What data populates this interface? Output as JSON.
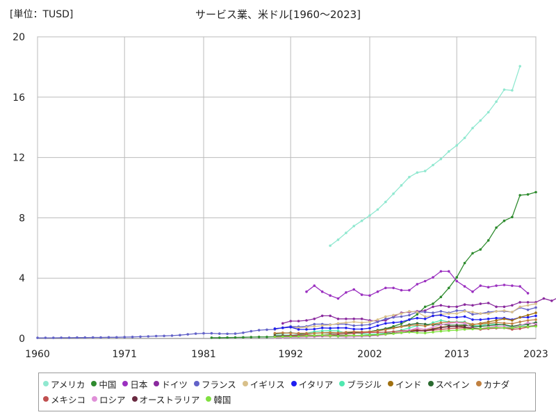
{
  "unit_label": "[単位：TUSD]",
  "chart_data": {
    "type": "line",
    "title": "サービス業、米ドル[1960～2023]",
    "xlabel": "",
    "ylabel": "",
    "xlim": [
      1960,
      2023
    ],
    "ylim": [
      0,
      20
    ],
    "x_ticks": [
      1960,
      1971,
      1981,
      1992,
      2002,
      2013,
      2023
    ],
    "y_ticks": [
      0,
      4,
      8,
      12,
      16,
      20
    ],
    "grid": true,
    "legend_position": "bottom",
    "series": [
      {
        "name": "アメリカ",
        "color": "#90e8d0",
        "start": 1997,
        "values": [
          6.15,
          6.55,
          7.0,
          7.45,
          7.8,
          8.15,
          8.55,
          9.05,
          9.6,
          10.15,
          10.7,
          11.0,
          11.1,
          11.5,
          11.9,
          12.4,
          12.8,
          13.3,
          13.95,
          14.45,
          15.0,
          15.7,
          16.5,
          16.45,
          18.05
        ]
      },
      {
        "name": "中国",
        "color": "#2e8b2e",
        "start": 1982,
        "values": [
          0.05,
          0.05,
          0.06,
          0.07,
          0.08,
          0.09,
          0.1,
          0.1,
          0.11,
          0.12,
          0.14,
          0.16,
          0.18,
          0.2,
          0.22,
          0.25,
          0.28,
          0.31,
          0.34,
          0.38,
          0.45,
          0.55,
          0.65,
          0.8,
          0.98,
          1.25,
          1.6,
          2.1,
          2.3,
          2.75,
          3.35,
          4.05,
          5.0,
          5.65,
          5.9,
          6.5,
          7.35,
          7.8,
          8.05,
          9.5,
          9.55,
          9.7
        ]
      },
      {
        "name": "日本",
        "color": "#9b30c0",
        "start": 1994,
        "values": [
          3.1,
          3.5,
          3.1,
          2.85,
          2.65,
          3.05,
          3.25,
          2.9,
          2.85,
          3.1,
          3.35,
          3.35,
          3.2,
          3.2,
          3.6,
          3.8,
          4.05,
          4.45,
          4.45,
          3.8,
          3.45,
          3.1,
          3.5,
          3.4,
          3.5,
          3.55,
          3.5,
          3.45,
          3.0
        ]
      },
      {
        "name": "ドイツ",
        "color": "#8a2a9e",
        "start": 1991,
        "values": [
          1.0,
          1.15,
          1.15,
          1.2,
          1.3,
          1.5,
          1.5,
          1.3,
          1.3,
          1.3,
          1.3,
          1.2,
          1.15,
          1.2,
          1.45,
          1.7,
          1.75,
          1.8,
          1.85,
          2.1,
          2.2,
          2.1,
          2.1,
          2.25,
          2.2,
          2.3,
          2.35,
          2.1,
          2.1,
          2.2,
          2.4,
          2.4,
          2.4,
          2.65,
          2.5,
          2.75
        ]
      },
      {
        "name": "フランス",
        "color": "#6262c8",
        "start": 1960,
        "values": [
          0.04,
          0.04,
          0.04,
          0.05,
          0.05,
          0.06,
          0.06,
          0.07,
          0.07,
          0.08,
          0.08,
          0.09,
          0.1,
          0.12,
          0.14,
          0.16,
          0.17,
          0.19,
          0.22,
          0.27,
          0.32,
          0.34,
          0.34,
          0.32,
          0.31,
          0.32,
          0.38,
          0.48,
          0.55,
          0.58,
          0.6,
          0.72,
          0.8,
          0.78,
          0.8,
          0.95,
          0.95,
          0.92,
          0.95,
          0.95,
          0.85,
          0.88,
          0.92,
          1.1,
          1.3,
          1.4,
          1.45,
          1.55,
          1.75,
          1.75,
          1.7,
          1.8,
          1.7,
          1.85,
          1.85,
          1.6,
          1.65,
          1.75,
          1.8,
          1.8,
          1.75,
          2.05,
          1.9,
          2.05
        ]
      },
      {
        "name": "イギリス",
        "color": "#d8c08a",
        "start": 1990,
        "values": [
          0.65,
          0.7,
          0.75,
          0.7,
          0.75,
          0.8,
          0.85,
          0.9,
          1.0,
          1.05,
          1.1,
          1.05,
          1.1,
          1.25,
          1.45,
          1.55,
          1.65,
          1.8,
          1.75,
          1.45,
          1.5,
          1.6,
          1.65,
          1.65,
          1.8,
          1.75,
          1.65,
          1.65,
          1.8,
          1.85,
          1.75,
          2.1,
          2.2,
          2.3
        ]
      },
      {
        "name": "イタリア",
        "color": "#1e1ef0",
        "start": 1990,
        "values": [
          0.65,
          0.7,
          0.75,
          0.6,
          0.6,
          0.62,
          0.7,
          0.68,
          0.7,
          0.7,
          0.62,
          0.62,
          0.68,
          0.85,
          1.0,
          1.05,
          1.1,
          1.25,
          1.35,
          1.3,
          1.5,
          1.55,
          1.4,
          1.4,
          1.45,
          1.25,
          1.25,
          1.3,
          1.35,
          1.35,
          1.25,
          1.4,
          1.4,
          1.5
        ]
      },
      {
        "name": "ブラジル",
        "color": "#50e8b0",
        "start": 1990,
        "values": [
          0.2,
          0.22,
          0.22,
          0.25,
          0.35,
          0.45,
          0.5,
          0.52,
          0.5,
          0.35,
          0.38,
          0.32,
          0.28,
          0.3,
          0.35,
          0.45,
          0.55,
          0.7,
          0.85,
          0.85,
          1.05,
          1.2,
          1.1,
          1.1,
          1.1,
          0.85,
          0.85,
          0.95,
          0.95,
          0.9,
          0.75,
          0.82,
          0.95,
          1.05
        ]
      },
      {
        "name": "インド",
        "color": "#a07010",
        "start": 1990,
        "values": [
          0.1,
          0.1,
          0.1,
          0.1,
          0.12,
          0.13,
          0.15,
          0.15,
          0.16,
          0.18,
          0.2,
          0.2,
          0.22,
          0.25,
          0.3,
          0.35,
          0.4,
          0.5,
          0.55,
          0.55,
          0.65,
          0.75,
          0.8,
          0.8,
          0.85,
          0.9,
          1.0,
          1.1,
          1.2,
          1.3,
          1.2,
          1.4,
          1.55,
          1.7
        ]
      },
      {
        "name": "スペイン",
        "color": "#2a6a30",
        "start": 1990,
        "values": [
          0.3,
          0.35,
          0.38,
          0.32,
          0.32,
          0.35,
          0.38,
          0.36,
          0.38,
          0.4,
          0.38,
          0.4,
          0.45,
          0.55,
          0.65,
          0.72,
          0.8,
          0.92,
          1.0,
          0.95,
          0.9,
          0.95,
          0.88,
          0.88,
          0.9,
          0.78,
          0.8,
          0.85,
          0.9,
          0.92,
          0.8,
          0.9,
          0.95,
          1.05
        ]
      },
      {
        "name": "カナダ",
        "color": "#c08040",
        "start": 1990,
        "values": [
          0.35,
          0.38,
          0.35,
          0.35,
          0.35,
          0.35,
          0.38,
          0.4,
          0.38,
          0.42,
          0.45,
          0.44,
          0.45,
          0.5,
          0.58,
          0.68,
          0.78,
          0.85,
          0.9,
          0.82,
          0.95,
          1.05,
          1.08,
          1.08,
          1.05,
          0.95,
          0.95,
          1.0,
          1.05,
          1.02,
          0.98,
          1.1,
          1.2,
          1.25
        ]
      },
      {
        "name": "メキシコ",
        "color": "#c05050",
        "start": 1990,
        "values": [
          0.15,
          0.18,
          0.2,
          0.22,
          0.25,
          0.2,
          0.22,
          0.25,
          0.3,
          0.32,
          0.35,
          0.38,
          0.4,
          0.4,
          0.42,
          0.45,
          0.5,
          0.55,
          0.6,
          0.5,
          0.55,
          0.6,
          0.65,
          0.68,
          0.7,
          0.65,
          0.6,
          0.65,
          0.68,
          0.7,
          0.6,
          0.65,
          0.75,
          0.85
        ]
      },
      {
        "name": "ロシア",
        "color": "#e090d8",
        "start": 1990,
        "values": [
          0.05,
          0.06,
          0.07,
          0.08,
          0.1,
          0.12,
          0.15,
          0.18,
          0.12,
          0.1,
          0.12,
          0.14,
          0.17,
          0.2,
          0.26,
          0.35,
          0.42,
          0.55,
          0.7,
          0.6,
          0.75,
          0.9,
          1.0,
          1.05,
          1.0,
          0.7,
          0.65,
          0.75,
          0.8,
          0.8,
          0.72,
          0.85,
          1.05,
          0.95
        ]
      },
      {
        "name": "オーストラリア",
        "color": "#6a2a40",
        "start": 1990,
        "values": [
          0.15,
          0.16,
          0.16,
          0.16,
          0.17,
          0.18,
          0.2,
          0.21,
          0.19,
          0.2,
          0.2,
          0.19,
          0.2,
          0.24,
          0.3,
          0.35,
          0.38,
          0.45,
          0.5,
          0.5,
          0.6,
          0.72,
          0.78,
          0.8,
          0.75,
          0.68,
          0.65,
          0.7,
          0.72,
          0.7,
          0.68,
          0.78,
          0.8,
          0.85
        ]
      },
      {
        "name": "韓国",
        "color": "#80e040",
        "start": 1990,
        "values": [
          0.1,
          0.12,
          0.13,
          0.14,
          0.17,
          0.2,
          0.22,
          0.2,
          0.15,
          0.18,
          0.2,
          0.2,
          0.22,
          0.25,
          0.28,
          0.32,
          0.38,
          0.42,
          0.38,
          0.36,
          0.42,
          0.48,
          0.52,
          0.55,
          0.6,
          0.62,
          0.65,
          0.7,
          0.72,
          0.7,
          0.7,
          0.78,
          0.78,
          0.8
        ]
      }
    ]
  }
}
